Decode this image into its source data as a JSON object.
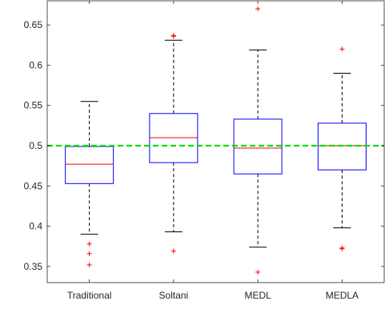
{
  "chart_data": {
    "type": "box",
    "title": "",
    "xlabel": "",
    "ylabel": "",
    "ylim": [
      0.33,
      0.68
    ],
    "yticks": [
      0.35,
      0.4,
      0.45,
      0.5,
      0.55,
      0.6,
      0.65
    ],
    "ytick_labels": [
      "0.35",
      "0.4",
      "0.45",
      "0.5",
      "0.55",
      "0.6",
      "0.65"
    ],
    "categories": [
      "Traditional",
      "Soltani",
      "MEDL",
      "MEDLA"
    ],
    "boxes": [
      {
        "category": "Traditional",
        "whisker_low": 0.39,
        "q1": 0.453,
        "median": 0.477,
        "q3": 0.499,
        "whisker_high": 0.555,
        "outliers": [
          0.378,
          0.366,
          0.352
        ]
      },
      {
        "category": "Soltani",
        "whisker_low": 0.393,
        "q1": 0.479,
        "median": 0.51,
        "q3": 0.54,
        "whisker_high": 0.631,
        "outliers": [
          0.637,
          0.636,
          0.369
        ]
      },
      {
        "category": "MEDL",
        "whisker_low": 0.374,
        "q1": 0.465,
        "median": 0.497,
        "q3": 0.533,
        "whisker_high": 0.619,
        "outliers": [
          0.67,
          0.343
        ]
      },
      {
        "category": "MEDLA",
        "whisker_low": 0.398,
        "q1": 0.47,
        "median": 0.5,
        "q3": 0.528,
        "whisker_high": 0.59,
        "outliers": [
          0.62,
          0.373,
          0.372
        ]
      }
    ],
    "reference_line": {
      "y": 0.5,
      "style": "dashed"
    },
    "grid": false,
    "legend": "none",
    "colors": {
      "box": "#0000ff",
      "median": "#ff0000",
      "whisker": "#000000",
      "outlier": "#ff0000",
      "reference_line": "#00dd00",
      "axis": "#262626"
    }
  }
}
